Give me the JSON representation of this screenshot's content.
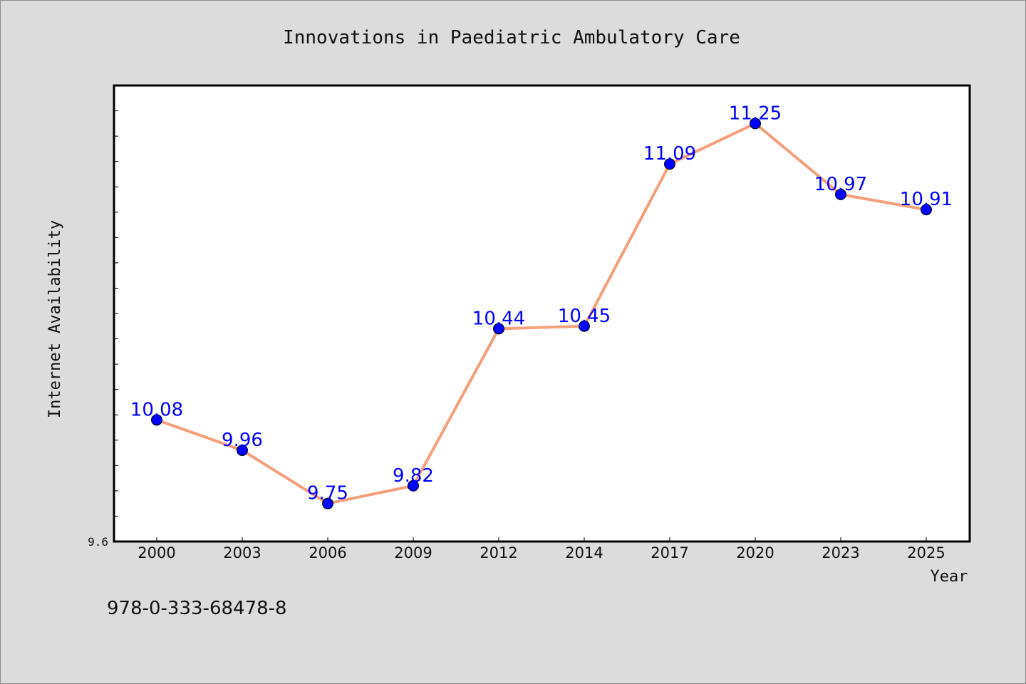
{
  "chart_data": {
    "type": "line",
    "title": "Innovations in Paediatric Ambulatory Care",
    "xlabel": "Year",
    "ylabel": "Internet Availability",
    "categories": [
      "2000",
      "2003",
      "2006",
      "2009",
      "2012",
      "2014",
      "2017",
      "2020",
      "2023",
      "2025"
    ],
    "series": [
      {
        "values": [
          10.08,
          9.96,
          9.75,
          9.82,
          10.44,
          10.45,
          11.09,
          11.25,
          10.97,
          10.91
        ]
      }
    ],
    "ylim": [
      9.6,
      11.4
    ],
    "y_tick_labels": [
      "9.6"
    ],
    "grid": false,
    "line_color": "#f4a07a",
    "marker_color": "#0000ff",
    "label_color": "#0000ff"
  },
  "footer": {
    "isbn": "978-0-333-68478-8"
  }
}
